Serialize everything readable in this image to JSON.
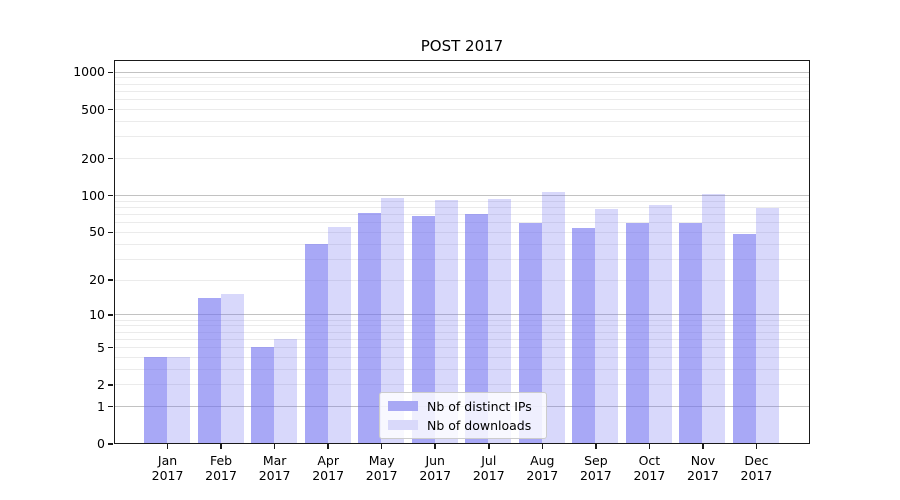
{
  "title": "POST 2017",
  "legend": {
    "items": [
      {
        "label": "Nb of distinct IPs",
        "swatch_color": "#a8a8f4"
      },
      {
        "label": "Nb of downloads",
        "swatch_color": "#d9d9fa"
      }
    ]
  },
  "colors": {
    "bar_base": "#6e6ef0",
    "bar_ips_alpha": 0.6,
    "bar_downloads_alpha": 0.27,
    "major_grid": "#c2c2c2",
    "minor_grid": "#ebebeb",
    "frame": "#1a1a1a",
    "text": "#000000"
  },
  "chart_data": {
    "type": "bar",
    "title": "POST 2017",
    "categories": [
      "Jan 2017",
      "Feb 2017",
      "Mar 2017",
      "Apr 2017",
      "May 2017",
      "Jun 2017",
      "Jul 2017",
      "Aug 2017",
      "Sep 2017",
      "Oct 2017",
      "Nov 2017",
      "Dec 2017"
    ],
    "series": [
      {
        "name": "Nb of distinct IPs",
        "values": [
          4,
          14,
          5,
          40,
          71,
          67,
          70,
          59,
          54,
          59,
          59,
          48
        ]
      },
      {
        "name": "Nb of downloads",
        "values": [
          4,
          15,
          6,
          55,
          94,
          92,
          93,
          106,
          77,
          83,
          102,
          78
        ]
      }
    ],
    "yscale": "log(1+x)",
    "ylim": [
      0,
      1000
    ],
    "ytick_values": [
      0,
      1,
      2,
      5,
      10,
      20,
      50,
      100,
      200,
      500,
      1000
    ],
    "ytick_labels": [
      "0",
      "1",
      "2",
      "5",
      "10",
      "20",
      "50",
      "100",
      "200",
      "500",
      "1000"
    ],
    "major_gridlines": [
      1,
      10,
      100,
      1000
    ],
    "minor_gridlines": [
      2,
      3,
      4,
      5,
      6,
      7,
      8,
      9,
      20,
      30,
      40,
      50,
      60,
      70,
      80,
      90,
      200,
      300,
      400,
      500,
      600,
      700,
      800,
      900
    ],
    "xlabel": "",
    "ylabel": "",
    "grid": true,
    "legend_position": "lower-center"
  }
}
